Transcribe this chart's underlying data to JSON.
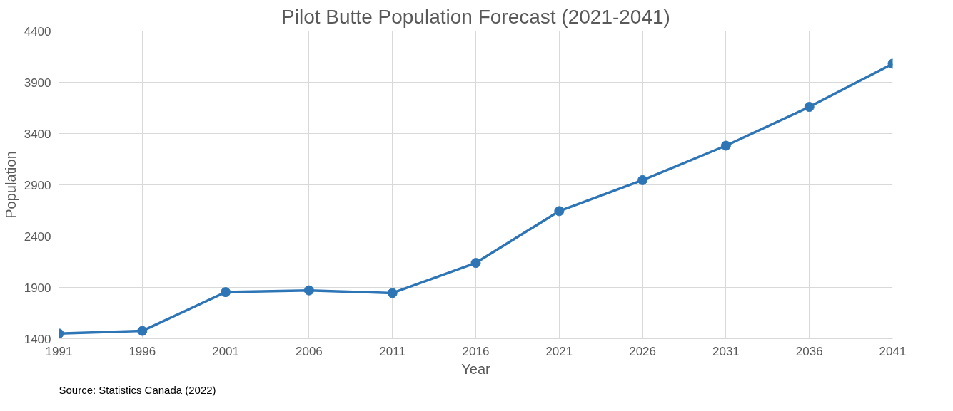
{
  "chart_data": {
    "type": "line",
    "title": "Pilot Butte Population Forecast (2021-2041)",
    "xlabel": "Year",
    "ylabel": "Population",
    "x": [
      1991,
      1996,
      2001,
      2006,
      2011,
      2016,
      2021,
      2026,
      2031,
      2036,
      2041
    ],
    "series": [
      {
        "color": "#2e75b6",
        "values": [
          1450,
          1476,
          1854,
          1871,
          1845,
          2139,
          2644,
          2946,
          3282,
          3660,
          4081
        ]
      }
    ],
    "xlim": [
      1991,
      2041
    ],
    "xticks": [
      1991,
      1996,
      2001,
      2006,
      2011,
      2016,
      2021,
      2026,
      2031,
      2036,
      2041
    ],
    "ylim": [
      1400,
      4400
    ],
    "yticks": [
      1400,
      1900,
      2400,
      2900,
      3400,
      3900,
      4400
    ],
    "grid": true,
    "marker": "circle",
    "line_style": "solid",
    "annotations": [
      "Source: Statistics Canada (2022)"
    ]
  }
}
